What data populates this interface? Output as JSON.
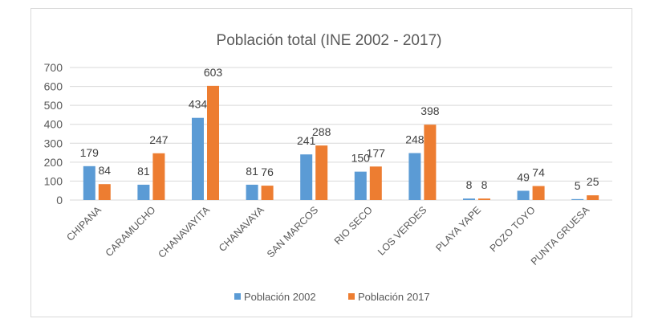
{
  "chart_data": {
    "type": "bar",
    "title": "Población total (INE 2002 - 2017)",
    "xlabel": "",
    "ylabel": "",
    "ylim": [
      0,
      700
    ],
    "yticks": [
      0,
      100,
      200,
      300,
      400,
      500,
      600,
      700
    ],
    "grid": true,
    "legend_position": "bottom",
    "categories": [
      "CHIPANA",
      "CARAMUCHO",
      "CHANAVAYITA",
      "CHANAVAYA",
      "SAN MARCOS",
      "RIO SECO",
      "LOS VERDES",
      "PLAYA YAPE",
      "POZO TOYO",
      "PUNTA GRUESA"
    ],
    "series": [
      {
        "name": "Población 2002",
        "color": "#5b9bd5",
        "values": [
          179,
          81,
          434,
          81,
          241,
          150,
          248,
          8,
          49,
          5
        ]
      },
      {
        "name": "Población 2017",
        "color": "#ed7d31",
        "values": [
          84,
          247,
          603,
          76,
          288,
          177,
          398,
          8,
          74,
          25
        ]
      }
    ]
  }
}
